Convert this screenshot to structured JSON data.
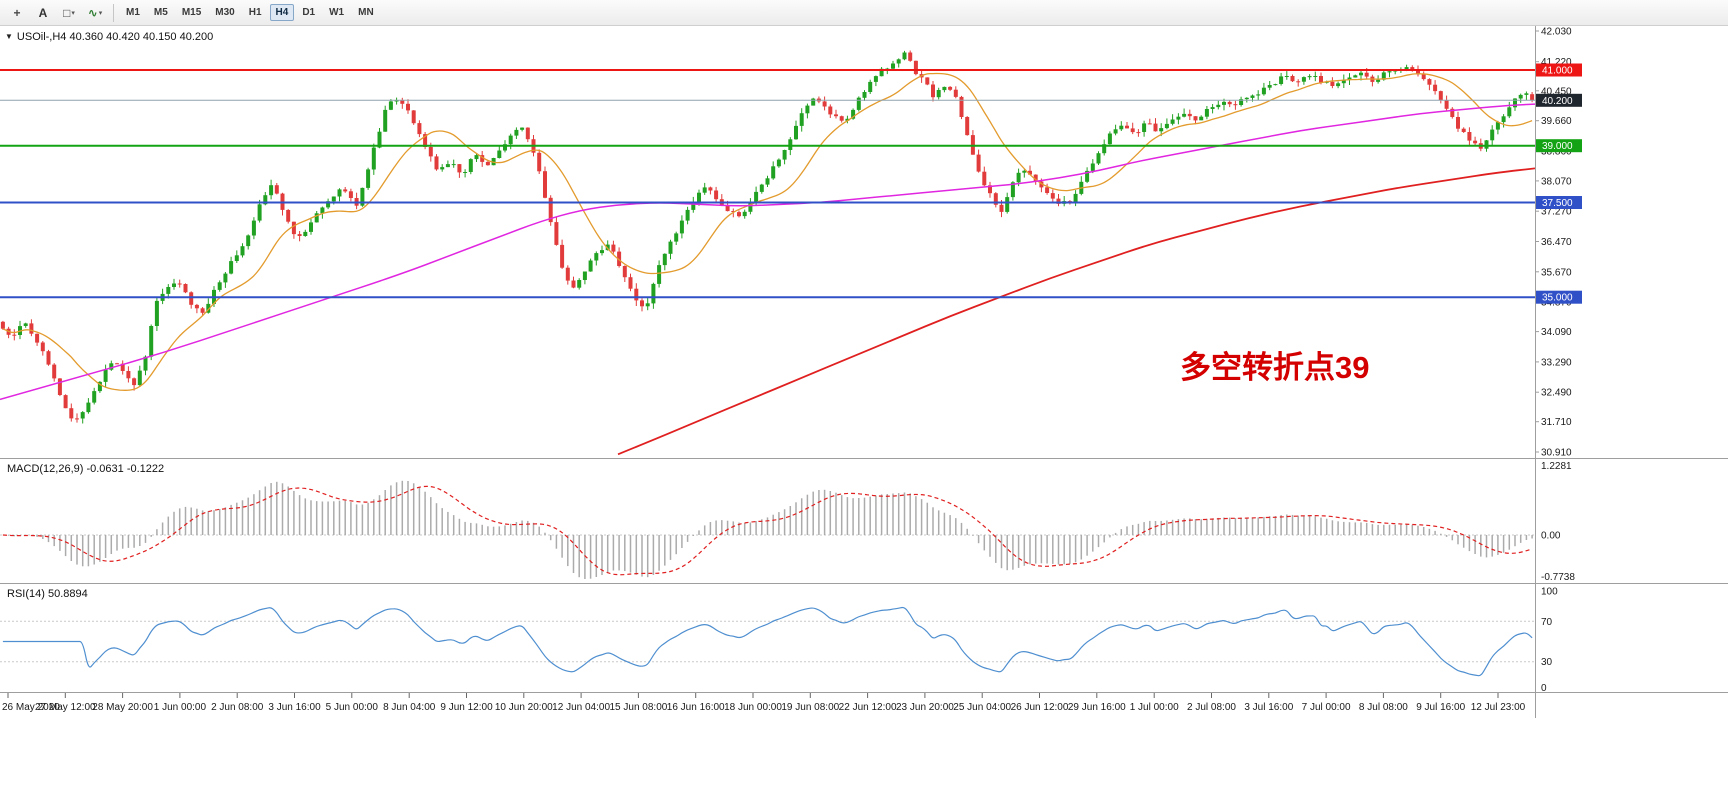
{
  "toolbar": {
    "icons": [
      {
        "name": "crosshair-tool-icon",
        "glyph": "+",
        "color": "#4a4a4a",
        "dropdown": false
      },
      {
        "name": "text-tool-icon",
        "glyph": "A",
        "color": "#333333",
        "dropdown": false
      },
      {
        "name": "shapes-tool-icon",
        "glyph": "□",
        "color": "#4a4a4a",
        "dropdown": true
      },
      {
        "name": "indicators-tool-icon",
        "glyph": "∿",
        "color": "#2e7d32",
        "dropdown": true
      }
    ],
    "timeframes": [
      {
        "label": "M1",
        "active": false
      },
      {
        "label": "M5",
        "active": false
      },
      {
        "label": "M15",
        "active": false
      },
      {
        "label": "M30",
        "active": false
      },
      {
        "label": "H1",
        "active": false
      },
      {
        "label": "H4",
        "active": true
      },
      {
        "label": "D1",
        "active": false
      },
      {
        "label": "W1",
        "active": false
      },
      {
        "label": "MN",
        "active": false
      }
    ]
  },
  "chart": {
    "collapse_arrow": "▼",
    "symbol_title": "USOil-,H4 40.360 40.420 40.150 40.200",
    "annotation": {
      "text": "多空转折点39",
      "color": "#d40000"
    }
  },
  "price_axis": {
    "ticks": [
      "42.030",
      "41.220",
      "40.450",
      "39.660",
      "38.860",
      "38.070",
      "37.270",
      "36.470",
      "35.670",
      "34.870",
      "34.090",
      "33.290",
      "32.490",
      "31.710",
      "30.910"
    ],
    "levels": [
      {
        "price": 41.0,
        "color": "#ee1515",
        "width": 2
      },
      {
        "price": 39.0,
        "color": "#14a314",
        "width": 2
      },
      {
        "price": 37.5,
        "color": "#3050c8",
        "width": 2
      },
      {
        "price": 35.0,
        "color": "#3050c8",
        "width": 2
      }
    ],
    "badges": [
      {
        "label": "41.000",
        "price": 41.0,
        "bg": "#ee1515"
      },
      {
        "label": "40.200",
        "price": 40.2,
        "bg": "#20262e"
      },
      {
        "label": "39.000",
        "price": 39.0,
        "bg": "#14a314"
      },
      {
        "label": "37.500",
        "price": 37.5,
        "bg": "#3050c8"
      },
      {
        "label": "35.000",
        "price": 35.0,
        "bg": "#3050c8"
      }
    ]
  },
  "macd": {
    "label": "MACD(12,26,9) -0.0631 -0.1222",
    "params": {
      "fast": 12,
      "slow": 26,
      "signal": 9
    },
    "values": {
      "macd": -0.0631,
      "signal": -0.1222
    },
    "scale_labels": [
      "1.2281",
      "0.00",
      "-0.7738"
    ],
    "histogram_color": "#ababab",
    "signal_color": "#e02020"
  },
  "rsi": {
    "label": "RSI(14) 50.8894",
    "period": 14,
    "value": 50.8894,
    "scale_labels": [
      "100",
      "70",
      "30",
      "0"
    ],
    "levels": [
      70,
      30
    ],
    "line_color": "#4f8fd0"
  },
  "time_axis": {
    "labels": [
      "26 May 2020",
      "27 May 12:00",
      "28 May 20:00",
      "1 Jun 00:00",
      "2 Jun 08:00",
      "3 Jun 16:00",
      "5 Jun 00:00",
      "8 Jun 04:00",
      "9 Jun 12:00",
      "10 Jun 20:00",
      "12 Jun 04:00",
      "15 Jun 08:00",
      "16 Jun 16:00",
      "18 Jun 00:00",
      "19 Jun 08:00",
      "22 Jun 12:00",
      "23 Jun 20:00",
      "25 Jun 04:00",
      "26 Jun 12:00",
      "29 Jun 16:00",
      "1 Jul 00:00",
      "2 Jul 08:00",
      "3 Jul 16:00",
      "7 Jul 00:00",
      "8 Jul 08:00",
      "9 Jul 16:00",
      "12 Jul 23:00"
    ]
  },
  "chart_data": {
    "type": "candlestick",
    "symbol": "USOil-",
    "timeframe": "H4",
    "ohlc_last": {
      "open": 40.36,
      "high": 40.42,
      "low": 40.15,
      "close": 40.2
    },
    "current_price": 40.2,
    "visible_price_range": [
      30.91,
      42.03
    ],
    "candle_count": 269,
    "horizontal_levels": [
      41.0,
      39.0,
      37.5,
      35.0
    ],
    "colors": {
      "up": "#21a121",
      "down": "#e23b3b",
      "ma_fast": "#e39b2d",
      "ma_mid": "#e026e0",
      "ma_slow": "#e02020",
      "current_line": "#8fa3ad"
    },
    "close_path": [
      [
        0,
        34.2
      ],
      [
        12,
        33.9
      ],
      [
        24,
        34.4
      ],
      [
        36,
        33.9
      ],
      [
        48,
        33.3
      ],
      [
        60,
        32.4
      ],
      [
        72,
        31.7
      ],
      [
        84,
        32.0
      ],
      [
        96,
        32.6
      ],
      [
        110,
        33.3
      ],
      [
        122,
        33.1
      ],
      [
        134,
        32.7
      ],
      [
        146,
        33.5
      ],
      [
        156,
        34.9
      ],
      [
        168,
        35.3
      ],
      [
        180,
        35.4
      ],
      [
        192,
        34.8
      ],
      [
        202,
        34.5
      ],
      [
        212,
        35.1
      ],
      [
        224,
        35.6
      ],
      [
        236,
        36.1
      ],
      [
        250,
        36.7
      ],
      [
        262,
        37.6
      ],
      [
        272,
        38.0
      ],
      [
        284,
        37.2
      ],
      [
        296,
        36.6
      ],
      [
        308,
        36.8
      ],
      [
        320,
        37.3
      ],
      [
        332,
        37.6
      ],
      [
        344,
        37.9
      ],
      [
        356,
        37.4
      ],
      [
        366,
        38.2
      ],
      [
        376,
        39.1
      ],
      [
        386,
        40.0
      ],
      [
        394,
        40.3
      ],
      [
        404,
        40.1
      ],
      [
        414,
        39.6
      ],
      [
        426,
        38.9
      ],
      [
        438,
        38.3
      ],
      [
        450,
        38.6
      ],
      [
        462,
        38.2
      ],
      [
        474,
        38.8
      ],
      [
        488,
        38.5
      ],
      [
        500,
        38.9
      ],
      [
        512,
        39.3
      ],
      [
        522,
        39.5
      ],
      [
        532,
        39.0
      ],
      [
        542,
        38.0
      ],
      [
        552,
        36.8
      ],
      [
        562,
        35.8
      ],
      [
        572,
        35.2
      ],
      [
        584,
        35.7
      ],
      [
        596,
        36.1
      ],
      [
        606,
        36.4
      ],
      [
        616,
        36.1
      ],
      [
        626,
        35.4
      ],
      [
        636,
        34.9
      ],
      [
        646,
        34.7
      ],
      [
        656,
        35.6
      ],
      [
        668,
        36.4
      ],
      [
        680,
        36.9
      ],
      [
        692,
        37.5
      ],
      [
        702,
        37.9
      ],
      [
        714,
        37.7
      ],
      [
        726,
        37.3
      ],
      [
        740,
        37.1
      ],
      [
        752,
        37.6
      ],
      [
        766,
        38.1
      ],
      [
        778,
        38.6
      ],
      [
        790,
        39.2
      ],
      [
        802,
        39.9
      ],
      [
        812,
        40.3
      ],
      [
        822,
        40.1
      ],
      [
        832,
        39.8
      ],
      [
        844,
        39.6
      ],
      [
        858,
        40.2
      ],
      [
        870,
        40.7
      ],
      [
        882,
        41.0
      ],
      [
        894,
        41.2
      ],
      [
        904,
        41.5
      ],
      [
        914,
        41.0
      ],
      [
        924,
        40.7
      ],
      [
        934,
        40.3
      ],
      [
        944,
        40.6
      ],
      [
        954,
        40.4
      ],
      [
        964,
        39.6
      ],
      [
        976,
        38.5
      ],
      [
        988,
        37.8
      ],
      [
        1000,
        37.2
      ],
      [
        1012,
        38.0
      ],
      [
        1022,
        38.4
      ],
      [
        1034,
        38.1
      ],
      [
        1048,
        37.7
      ],
      [
        1060,
        37.5
      ],
      [
        1072,
        37.6
      ],
      [
        1084,
        38.2
      ],
      [
        1098,
        38.8
      ],
      [
        1110,
        39.3
      ],
      [
        1122,
        39.6
      ],
      [
        1134,
        39.3
      ],
      [
        1146,
        39.6
      ],
      [
        1158,
        39.4
      ],
      [
        1170,
        39.7
      ],
      [
        1184,
        39.9
      ],
      [
        1196,
        39.7
      ],
      [
        1210,
        40.0
      ],
      [
        1222,
        40.2
      ],
      [
        1234,
        40.0
      ],
      [
        1246,
        40.3
      ],
      [
        1258,
        40.4
      ],
      [
        1272,
        40.6
      ],
      [
        1284,
        40.9
      ],
      [
        1296,
        40.7
      ],
      [
        1310,
        40.9
      ],
      [
        1322,
        40.7
      ],
      [
        1334,
        40.6
      ],
      [
        1348,
        40.8
      ],
      [
        1360,
        41.0
      ],
      [
        1372,
        40.7
      ],
      [
        1384,
        40.9
      ],
      [
        1398,
        41.0
      ],
      [
        1410,
        41.1
      ],
      [
        1422,
        40.8
      ],
      [
        1434,
        40.5
      ],
      [
        1446,
        40.0
      ],
      [
        1458,
        39.5
      ],
      [
        1470,
        39.1
      ],
      [
        1482,
        38.9
      ],
      [
        1494,
        39.5
      ],
      [
        1506,
        39.9
      ],
      [
        1516,
        40.3
      ],
      [
        1526,
        40.4
      ],
      [
        1535,
        40.2
      ]
    ],
    "ma_mid_points": [
      [
        0,
        32.3
      ],
      [
        80,
        32.9
      ],
      [
        160,
        33.5
      ],
      [
        240,
        34.2
      ],
      [
        320,
        34.9
      ],
      [
        400,
        35.6
      ],
      [
        450,
        36.1
      ],
      [
        500,
        36.6
      ],
      [
        540,
        37.0
      ],
      [
        580,
        37.3
      ],
      [
        620,
        37.45
      ],
      [
        660,
        37.5
      ],
      [
        700,
        37.45
      ],
      [
        740,
        37.4
      ],
      [
        780,
        37.45
      ],
      [
        820,
        37.5
      ],
      [
        860,
        37.6
      ],
      [
        900,
        37.7
      ],
      [
        940,
        37.8
      ],
      [
        980,
        37.9
      ],
      [
        1020,
        38.0
      ],
      [
        1060,
        38.15
      ],
      [
        1100,
        38.35
      ],
      [
        1140,
        38.6
      ],
      [
        1180,
        38.8
      ],
      [
        1220,
        39.0
      ],
      [
        1260,
        39.2
      ],
      [
        1300,
        39.4
      ],
      [
        1340,
        39.55
      ],
      [
        1380,
        39.7
      ],
      [
        1420,
        39.85
      ],
      [
        1460,
        39.95
      ],
      [
        1500,
        40.05
      ],
      [
        1535,
        40.1
      ]
    ],
    "ma_slow_points": [
      [
        618,
        30.85
      ],
      [
        660,
        31.3
      ],
      [
        700,
        31.75
      ],
      [
        750,
        32.3
      ],
      [
        800,
        32.85
      ],
      [
        850,
        33.4
      ],
      [
        900,
        33.95
      ],
      [
        950,
        34.5
      ],
      [
        1000,
        35.0
      ],
      [
        1050,
        35.5
      ],
      [
        1100,
        35.95
      ],
      [
        1150,
        36.4
      ],
      [
        1200,
        36.75
      ],
      [
        1250,
        37.1
      ],
      [
        1300,
        37.4
      ],
      [
        1350,
        37.65
      ],
      [
        1400,
        37.9
      ],
      [
        1450,
        38.1
      ],
      [
        1500,
        38.3
      ],
      [
        1535,
        38.4
      ]
    ]
  }
}
